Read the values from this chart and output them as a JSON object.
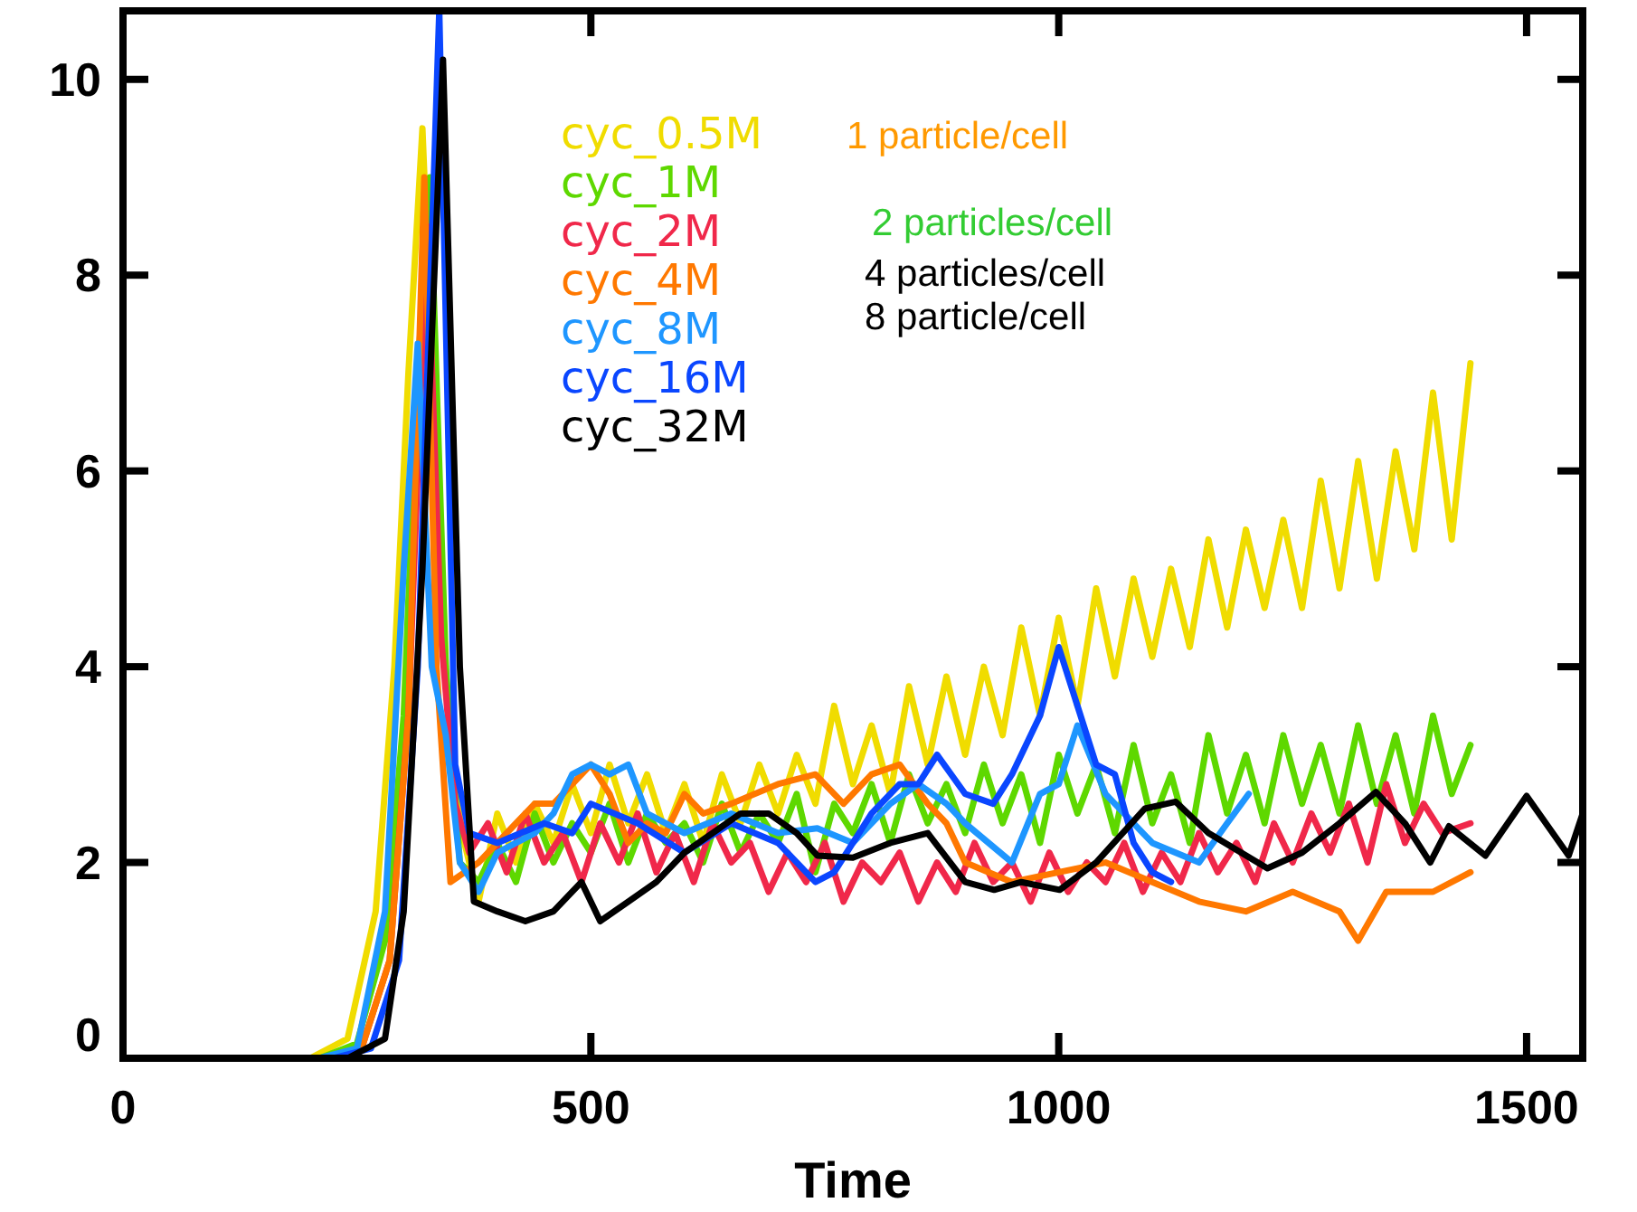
{
  "chart_data": {
    "type": "line",
    "xlabel": "Time",
    "xlim": [
      0,
      1560
    ],
    "ylim": [
      0,
      10.7
    ],
    "xticks": [
      0,
      500,
      1000,
      1500
    ],
    "yticks": [
      0,
      2,
      4,
      6,
      8,
      10
    ],
    "grid": false,
    "legend": "top",
    "line_style": "solid",
    "annotations": [
      "1 particle/cell",
      "2 particles/cell",
      "4 particles/cell",
      "8 particle/cell"
    ],
    "series": [
      {
        "name": "cyc_0.5M",
        "color": "#f0dc00",
        "x": [
          0,
          200,
          240,
          270,
          290,
          305,
          320,
          335,
          350,
          365,
          380,
          400,
          420,
          440,
          460,
          480,
          500,
          520,
          540,
          560,
          580,
          600,
          620,
          640,
          660,
          680,
          700,
          720,
          740,
          760,
          780,
          800,
          820,
          840,
          860,
          880,
          900,
          920,
          940,
          960,
          980,
          1000,
          1020,
          1040,
          1060,
          1080,
          1100,
          1120,
          1140,
          1160,
          1180,
          1200,
          1220,
          1240,
          1260,
          1280,
          1300,
          1320,
          1340,
          1360,
          1380,
          1400,
          1420,
          1440
        ],
        "values": [
          0,
          0,
          0.2,
          1.5,
          4,
          7,
          9.5,
          6,
          3,
          2.2,
          1.6,
          2.5,
          2,
          2.6,
          2.2,
          2.8,
          2.3,
          3,
          2.4,
          2.9,
          2.3,
          2.8,
          2.2,
          2.9,
          2.4,
          3,
          2.5,
          3.1,
          2.6,
          3.6,
          2.8,
          3.4,
          2.7,
          3.8,
          3,
          3.9,
          3.1,
          4,
          3.3,
          4.4,
          3.5,
          4.5,
          3.6,
          4.8,
          3.9,
          4.9,
          4.1,
          5,
          4.2,
          5.3,
          4.4,
          5.4,
          4.6,
          5.5,
          4.6,
          5.9,
          4.8,
          6.1,
          4.9,
          6.2,
          5.2,
          6.8,
          5.3,
          7.1
        ]
      },
      {
        "name": "cyc_1M",
        "color": "#5ed800",
        "x": [
          0,
          210,
          250,
          280,
          300,
          315,
          328,
          345,
          360,
          380,
          400,
          420,
          440,
          460,
          480,
          500,
          520,
          540,
          560,
          580,
          600,
          620,
          640,
          660,
          680,
          700,
          720,
          740,
          760,
          780,
          800,
          820,
          840,
          860,
          880,
          900,
          920,
          940,
          960,
          980,
          1000,
          1020,
          1040,
          1060,
          1080,
          1100,
          1120,
          1140,
          1160,
          1180,
          1200,
          1220,
          1240,
          1260,
          1280,
          1300,
          1320,
          1340,
          1360,
          1380,
          1400,
          1420,
          1440
        ],
        "values": [
          0,
          0,
          0.15,
          1.2,
          3.5,
          7,
          9,
          4,
          2,
          1.8,
          2.2,
          1.8,
          2.5,
          2,
          2.4,
          2.1,
          2.6,
          2,
          2.5,
          2.2,
          2.4,
          2,
          2.6,
          2.1,
          2.5,
          2.2,
          2.7,
          1.9,
          2.6,
          2.3,
          2.8,
          2.2,
          2.9,
          2.4,
          2.8,
          2.3,
          3,
          2.4,
          2.9,
          2.2,
          3.1,
          2.5,
          3,
          2.3,
          3.2,
          2.4,
          2.9,
          2.2,
          3.3,
          2.5,
          3.1,
          2.4,
          3.3,
          2.6,
          3.2,
          2.5,
          3.4,
          2.6,
          3.3,
          2.5,
          3.5,
          2.7,
          3.2
        ]
      },
      {
        "name": "cyc_2M",
        "color": "#f0284a",
        "x": [
          0,
          215,
          255,
          285,
          305,
          325,
          340,
          355,
          370,
          390,
          410,
          430,
          450,
          470,
          490,
          510,
          530,
          550,
          570,
          590,
          610,
          630,
          650,
          670,
          690,
          710,
          730,
          750,
          770,
          790,
          810,
          830,
          850,
          870,
          890,
          910,
          930,
          950,
          970,
          990,
          1010,
          1030,
          1050,
          1070,
          1090,
          1110,
          1130,
          1150,
          1170,
          1190,
          1210,
          1230,
          1250,
          1270,
          1290,
          1310,
          1330,
          1350,
          1370,
          1390,
          1410,
          1440
        ],
        "values": [
          0,
          0,
          0.1,
          1,
          3.5,
          8.5,
          4.3,
          2.6,
          2.1,
          2.4,
          1.9,
          2.5,
          2,
          2.3,
          1.8,
          2.4,
          2,
          2.5,
          1.9,
          2.3,
          1.8,
          2.4,
          2,
          2.2,
          1.7,
          2.1,
          1.8,
          2.2,
          1.6,
          2,
          1.8,
          2.1,
          1.6,
          2,
          1.7,
          2.2,
          1.8,
          2,
          1.6,
          2.1,
          1.7,
          2,
          1.8,
          2.2,
          1.7,
          2.1,
          1.8,
          2.3,
          1.9,
          2.2,
          1.8,
          2.4,
          2,
          2.5,
          2.1,
          2.6,
          2,
          2.8,
          2.2,
          2.6,
          2.3,
          2.4
        ]
      },
      {
        "name": "cyc_4M",
        "color": "#ff7800",
        "x": [
          0,
          215,
          255,
          285,
          305,
          322,
          335,
          350,
          380,
          420,
          440,
          460,
          480,
          500,
          520,
          540,
          560,
          580,
          600,
          620,
          650,
          700,
          740,
          770,
          800,
          830,
          860,
          880,
          900,
          950,
          1000,
          1050,
          1100,
          1150,
          1200,
          1250,
          1300,
          1320,
          1350,
          1400,
          1440
        ],
        "values": [
          0,
          0,
          0.1,
          1,
          3.5,
          9,
          4,
          1.8,
          2,
          2.4,
          2.6,
          2.6,
          2.8,
          3,
          2.7,
          2.2,
          2.4,
          2.3,
          2.7,
          2.5,
          2.6,
          2.8,
          2.9,
          2.6,
          2.9,
          3,
          2.6,
          2.4,
          2,
          1.8,
          1.9,
          2,
          1.8,
          1.6,
          1.5,
          1.7,
          1.5,
          1.2,
          1.7,
          1.7,
          1.9
        ]
      },
      {
        "name": "cyc_8M",
        "color": "#1e96ff",
        "x": [
          0,
          210,
          250,
          280,
          300,
          315,
          330,
          345,
          360,
          380,
          400,
          420,
          440,
          460,
          480,
          500,
          520,
          540,
          560,
          600,
          650,
          700,
          742,
          780,
          820,
          850,
          880,
          900,
          950,
          980,
          1000,
          1020,
          1050,
          1100,
          1150,
          1180,
          1203
        ],
        "values": [
          0,
          0,
          0.1,
          1.5,
          5,
          7.3,
          4,
          3.3,
          2,
          1.7,
          2.1,
          2.2,
          2.3,
          2.5,
          2.9,
          3,
          2.9,
          3,
          2.5,
          2.3,
          2.5,
          2.3,
          2.35,
          2.2,
          2.6,
          2.8,
          2.6,
          2.4,
          2,
          2.7,
          2.8,
          3.4,
          2.7,
          2.2,
          2,
          2.4,
          2.7
        ]
      },
      {
        "name": "cyc_16M",
        "color": "#0a46ff",
        "x": [
          0,
          225,
          265,
          295,
          315,
          338,
          355,
          370,
          400,
          450,
          480,
          500,
          550,
          600,
          650,
          700,
          740,
          760,
          800,
          830,
          850,
          870,
          900,
          930,
          950,
          980,
          1000,
          1020,
          1040,
          1060,
          1080,
          1100,
          1120
        ],
        "values": [
          0,
          0,
          0.1,
          1,
          4,
          10.7,
          3,
          2.3,
          2.2,
          2.4,
          2.3,
          2.6,
          2.4,
          2.1,
          2.4,
          2.2,
          1.8,
          1.9,
          2.5,
          2.8,
          2.8,
          3.1,
          2.7,
          2.6,
          2.9,
          3.5,
          4.2,
          3.6,
          3,
          2.9,
          2.2,
          1.9,
          1.8
        ]
      },
      {
        "name": "cyc_32M",
        "color": "#000000",
        "x": [
          0,
          240,
          280,
          300,
          320,
          342,
          360,
          375,
          400,
          430,
          460,
          490,
          510,
          540,
          570,
          600,
          630,
          660,
          690,
          720,
          742,
          780,
          820,
          860,
          900,
          931,
          960,
          1001,
          1040,
          1092,
          1125,
          1160,
          1223,
          1260,
          1300,
          1339,
          1370,
          1397,
          1417,
          1456,
          1500,
          1545,
          1560
        ],
        "values": [
          0,
          0,
          0.2,
          1.5,
          5,
          10.2,
          4,
          1.6,
          1.5,
          1.4,
          1.5,
          1.8,
          1.4,
          1.6,
          1.8,
          2.1,
          2.3,
          2.5,
          2.5,
          2.3,
          2.07,
          2.05,
          2.2,
          2.3,
          1.8,
          1.72,
          1.8,
          1.72,
          2,
          2.55,
          2.62,
          2.3,
          1.94,
          2.1,
          2.4,
          2.72,
          2.4,
          2,
          2.37,
          2.07,
          2.68,
          2.07,
          2.5
        ]
      }
    ]
  }
}
